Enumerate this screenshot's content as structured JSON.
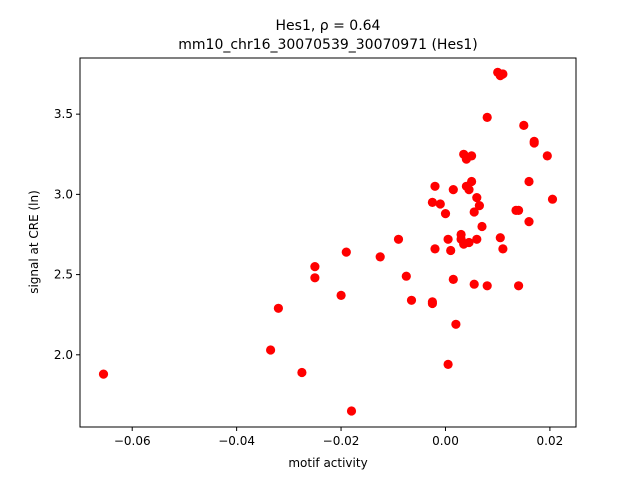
{
  "chart_data": {
    "type": "scatter",
    "title_line1": "Hes1, ρ = 0.64",
    "title_line2": "mm10_chr16_30070539_30070971 (Hes1)",
    "xlabel": "motif activity",
    "ylabel": "signal at CRE (ln)",
    "xlim": [
      -0.07,
      0.025
    ],
    "ylim": [
      1.55,
      3.85
    ],
    "x_ticks": [
      -0.06,
      -0.04,
      -0.02,
      0.0,
      0.02
    ],
    "x_tick_labels": [
      "−0.06",
      "−0.04",
      "−0.02",
      "0.00",
      "0.02"
    ],
    "y_ticks": [
      2.0,
      2.5,
      3.0,
      3.5
    ],
    "y_tick_labels": [
      "2.0",
      "2.5",
      "3.0",
      "3.5"
    ],
    "grid": false,
    "marker_color": "#ff0000",
    "points": [
      [
        -0.0655,
        1.88
      ],
      [
        -0.0335,
        2.03
      ],
      [
        -0.032,
        2.29
      ],
      [
        -0.0275,
        1.89
      ],
      [
        -0.025,
        2.55
      ],
      [
        -0.025,
        2.48
      ],
      [
        -0.02,
        2.37
      ],
      [
        -0.019,
        2.64
      ],
      [
        -0.018,
        1.65
      ],
      [
        -0.0125,
        2.61
      ],
      [
        -0.009,
        2.72
      ],
      [
        -0.0075,
        2.49
      ],
      [
        -0.0065,
        2.34
      ],
      [
        -0.0025,
        2.33
      ],
      [
        -0.0025,
        2.32
      ],
      [
        -0.0025,
        2.95
      ],
      [
        -0.002,
        3.05
      ],
      [
        -0.002,
        2.66
      ],
      [
        -0.001,
        2.94
      ],
      [
        0.0,
        2.88
      ],
      [
        0.0005,
        2.72
      ],
      [
        0.0005,
        1.94
      ],
      [
        0.001,
        2.65
      ],
      [
        0.0015,
        3.03
      ],
      [
        0.0015,
        2.47
      ],
      [
        0.002,
        2.19
      ],
      [
        0.003,
        2.75
      ],
      [
        0.003,
        2.72
      ],
      [
        0.0035,
        2.69
      ],
      [
        0.0035,
        3.25
      ],
      [
        0.004,
        3.22
      ],
      [
        0.004,
        3.05
      ],
      [
        0.0045,
        3.03
      ],
      [
        0.0045,
        2.7
      ],
      [
        0.005,
        3.24
      ],
      [
        0.005,
        3.08
      ],
      [
        0.0055,
        2.44
      ],
      [
        0.0055,
        2.89
      ],
      [
        0.006,
        2.72
      ],
      [
        0.006,
        2.98
      ],
      [
        0.0065,
        2.93
      ],
      [
        0.007,
        2.8
      ],
      [
        0.008,
        3.48
      ],
      [
        0.008,
        2.43
      ],
      [
        0.01,
        3.76
      ],
      [
        0.0105,
        3.74
      ],
      [
        0.0105,
        2.73
      ],
      [
        0.011,
        3.75
      ],
      [
        0.011,
        2.66
      ],
      [
        0.0135,
        2.9
      ],
      [
        0.014,
        2.9
      ],
      [
        0.014,
        2.43
      ],
      [
        0.015,
        3.43
      ],
      [
        0.016,
        3.08
      ],
      [
        0.016,
        2.83
      ],
      [
        0.017,
        3.33
      ],
      [
        0.017,
        3.32
      ],
      [
        0.0195,
        3.24
      ],
      [
        0.0205,
        2.97
      ]
    ]
  }
}
